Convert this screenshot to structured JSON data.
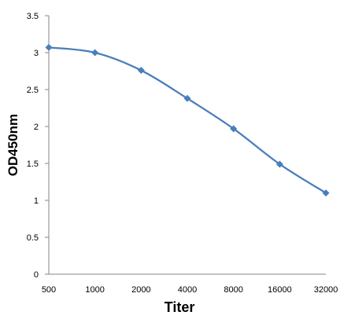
{
  "chart_data": {
    "type": "line",
    "title": "",
    "xlabel": "Titer",
    "ylabel": "OD450nm",
    "categories": [
      "500",
      "1000",
      "2000",
      "4000",
      "8000",
      "16000",
      "32000"
    ],
    "series": [
      {
        "values": [
          3.07,
          3.0,
          2.76,
          2.38,
          1.97,
          1.49,
          1.1
        ]
      }
    ],
    "ylim": [
      0,
      3.5
    ],
    "yticks": [
      "0",
      "0.5",
      "1",
      "1.5",
      "2",
      "2.5",
      "3",
      "3.5"
    ],
    "grid": false,
    "legend": "none",
    "colors": {
      "series": "#4A7EBB",
      "axis": "#868686"
    },
    "marker": "diamond",
    "smooth": true
  }
}
